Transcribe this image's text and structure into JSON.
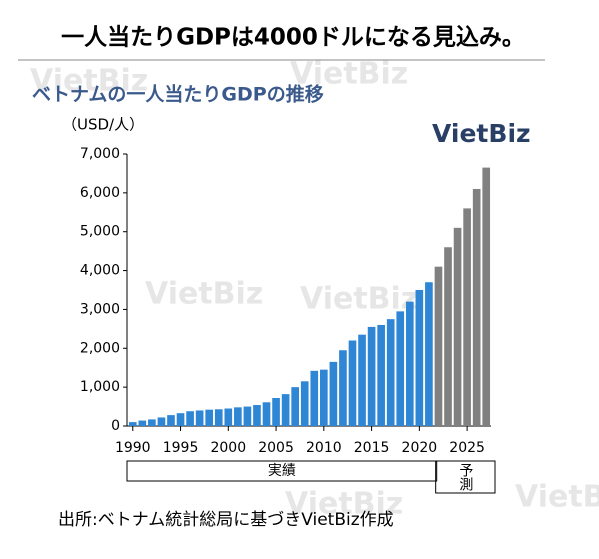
{
  "header": {
    "title": "一人当たりGDPは4000ドルになる見込み。"
  },
  "watermarks": [
    "VietBiz",
    "VietBiz",
    "VietBiz",
    "VietBiz",
    "VietBiz",
    "VietBiz"
  ],
  "logo": "VietBiz",
  "chart_data": {
    "type": "bar",
    "title": "ベトナムの一人当たりGDPの推移",
    "y_label": "（USD/人）",
    "categories": [
      "1990",
      null,
      null,
      null,
      null,
      "1995",
      null,
      null,
      null,
      null,
      "2000",
      null,
      null,
      null,
      null,
      "2005",
      null,
      null,
      null,
      null,
      "2010",
      null,
      null,
      null,
      null,
      "2015",
      null,
      null,
      null,
      null,
      "2020",
      null,
      null,
      null,
      null,
      "2025",
      null,
      null
    ],
    "series": [
      {
        "name": "実績",
        "color": "#2e86d4",
        "values": [
          100,
          140,
          170,
          220,
          280,
          330,
          380,
          400,
          420,
          430,
          450,
          480,
          500,
          540,
          610,
          720,
          820,
          1000,
          1150,
          1420,
          1450,
          1650,
          1950,
          2200,
          2350,
          2550,
          2600,
          2750,
          2950,
          3200,
          3500,
          3700,
          null,
          null,
          null,
          null,
          null,
          null
        ]
      },
      {
        "name": "予測",
        "color": "#808080",
        "values": [
          null,
          null,
          null,
          null,
          null,
          null,
          null,
          null,
          null,
          null,
          null,
          null,
          null,
          null,
          null,
          null,
          null,
          null,
          null,
          null,
          null,
          null,
          null,
          null,
          null,
          null,
          null,
          null,
          null,
          null,
          null,
          null,
          4100,
          4600,
          5100,
          5600,
          6100,
          6650
        ]
      }
    ],
    "ylim": [
      0,
      7000
    ],
    "yticks": [
      0,
      {
        "value": 1000,
        "label": "1,000"
      },
      {
        "value": 2000,
        "label": "2,000"
      },
      {
        "value": 3000,
        "label": "3,000"
      },
      {
        "value": 4000,
        "label": "4,000"
      },
      {
        "value": 5000,
        "label": "5,000"
      },
      {
        "value": 6000,
        "label": "6,000"
      },
      {
        "value": 7000,
        "label": "7,000"
      }
    ],
    "grid": false
  },
  "source": "出所:ベトナム統計総局に基づきVietBiz作成"
}
